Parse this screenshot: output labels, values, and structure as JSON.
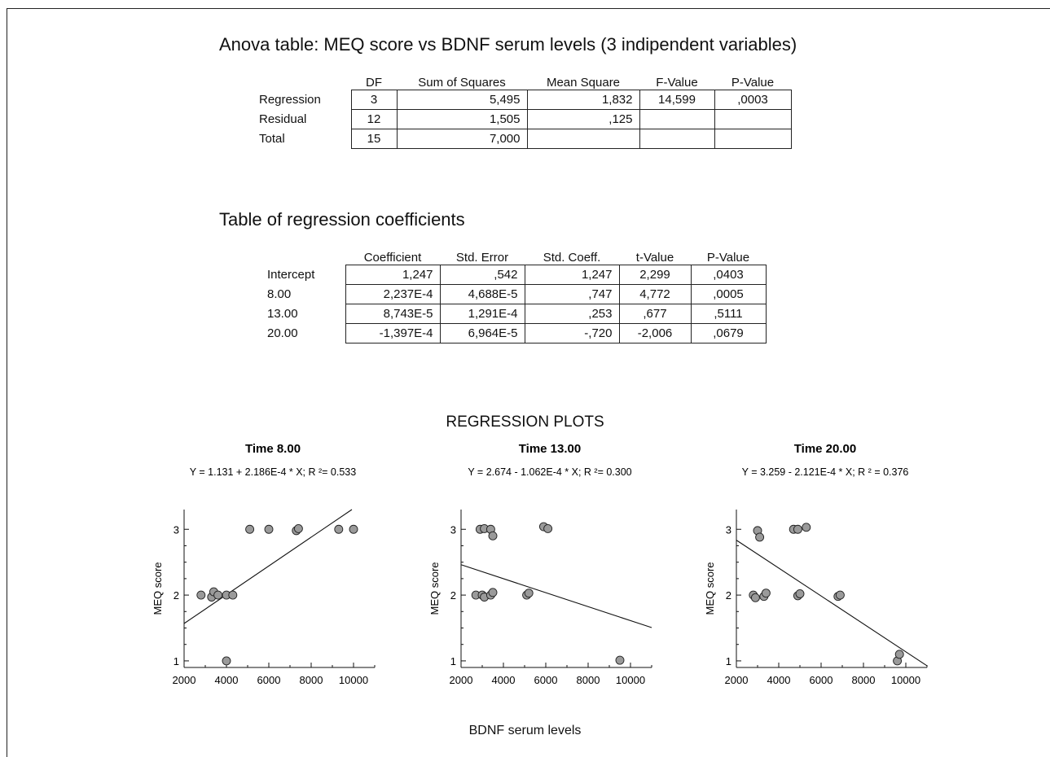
{
  "anova": {
    "title": "Anova table: MEQ score vs BDNF serum levels (3  indipendent  variables)",
    "headers": [
      "",
      "DF",
      "Sum of Squares",
      "Mean Square",
      "F-Value",
      "P-Value"
    ],
    "rows": [
      [
        "Regression",
        "3",
        "5,495",
        "1,832",
        "14,599",
        ",0003"
      ],
      [
        "Residual",
        "12",
        "1,505",
        ",125",
        "",
        ""
      ],
      [
        "Total",
        "15",
        "7,000",
        "",
        "",
        ""
      ]
    ]
  },
  "coefficients": {
    "title": "Table of regression coefficients",
    "headers": [
      "",
      "Coefficient",
      "Std. Error",
      "Std. Coeff.",
      "t-Value",
      "P-Value"
    ],
    "rows": [
      [
        "Intercept",
        "1,247",
        ",542",
        "1,247",
        "2,299",
        ",0403"
      ],
      [
        "8.00",
        "2,237E-4",
        "4,688E-5",
        ",747",
        "4,772",
        ",0005"
      ],
      [
        "13.00",
        "8,743E-5",
        "1,291E-4",
        ",253",
        ",677",
        ",5111"
      ],
      [
        "20.00",
        "-1,397E-4",
        "6,964E-5",
        "-,720",
        "-2,006",
        ",0679"
      ]
    ]
  },
  "plots": {
    "title": "REGRESSION PLOTS",
    "shared_xlabel": "BDNF serum levels"
  },
  "chart_data": [
    {
      "type": "scatter",
      "title": "Time 8.00",
      "subtitle": "Y = 1.131 + 2.186E-4 * X; R ²= 0.533",
      "ylabel": "MEQ score",
      "xlabel": "",
      "xlim": [
        2000,
        11000
      ],
      "ylim": [
        0.9,
        3.3
      ],
      "x_ticks": [
        "2000",
        "4000",
        "6000",
        "8000",
        "10000"
      ],
      "y_ticks": [
        "1",
        "2",
        "3"
      ],
      "regression": {
        "intercept": 1.131,
        "slope": 0.0002186
      },
      "points": [
        [
          2800,
          2
        ],
        [
          3300,
          1.97
        ],
        [
          3400,
          2.05
        ],
        [
          3600,
          2
        ],
        [
          4000,
          2
        ],
        [
          4300,
          2
        ],
        [
          4000,
          1
        ],
        [
          5100,
          3
        ],
        [
          6000,
          3
        ],
        [
          7300,
          2.98
        ],
        [
          7400,
          3.01
        ],
        [
          9300,
          3
        ],
        [
          10000,
          3
        ]
      ],
      "marker_color": "#9a9a9a"
    },
    {
      "type": "scatter",
      "title": "Time 13.00",
      "subtitle": "Y = 2.674 - 1.062E-4 * X; R ²= 0.300",
      "ylabel": "MEQ score",
      "xlabel": "",
      "xlim": [
        2000,
        11000
      ],
      "ylim": [
        0.9,
        3.3
      ],
      "x_ticks": [
        "2000",
        "4000",
        "6000",
        "8000",
        "10000"
      ],
      "y_ticks": [
        "1",
        "2",
        "3"
      ],
      "regression": {
        "intercept": 2.674,
        "slope": -0.0001062
      },
      "points": [
        [
          2700,
          2
        ],
        [
          2900,
          3
        ],
        [
          3000,
          2
        ],
        [
          3100,
          1.97
        ],
        [
          3100,
          3.01
        ],
        [
          3400,
          3
        ],
        [
          3500,
          2.9
        ],
        [
          3400,
          2
        ],
        [
          3500,
          2.04
        ],
        [
          5100,
          2
        ],
        [
          5200,
          2.03
        ],
        [
          5900,
          3.04
        ],
        [
          6100,
          3.01
        ],
        [
          9500,
          1.01
        ]
      ],
      "marker_color": "#9a9a9a"
    },
    {
      "type": "scatter",
      "title": "Time 20.00",
      "subtitle": "Y = 3.259 - 2.121E-4 * X; R ² = 0.376",
      "ylabel": "MEQ score",
      "xlabel": "",
      "xlim": [
        2000,
        11000
      ],
      "ylim": [
        0.9,
        3.3
      ],
      "x_ticks": [
        "2000",
        "4000",
        "6000",
        "8000",
        "10000"
      ],
      "y_ticks": [
        "1",
        "2",
        "3"
      ],
      "regression": {
        "intercept": 3.259,
        "slope": -0.0002121
      },
      "points": [
        [
          2800,
          2
        ],
        [
          2900,
          1.96
        ],
        [
          3000,
          2.98
        ],
        [
          3100,
          2.88
        ],
        [
          3300,
          1.98
        ],
        [
          3400,
          2.03
        ],
        [
          4700,
          3
        ],
        [
          4900,
          3
        ],
        [
          4900,
          1.99
        ],
        [
          5000,
          2.02
        ],
        [
          5300,
          3.03
        ],
        [
          6800,
          1.98
        ],
        [
          6900,
          2
        ],
        [
          9600,
          1
        ],
        [
          9700,
          1.1
        ]
      ],
      "marker_color": "#9a9a9a"
    }
  ]
}
